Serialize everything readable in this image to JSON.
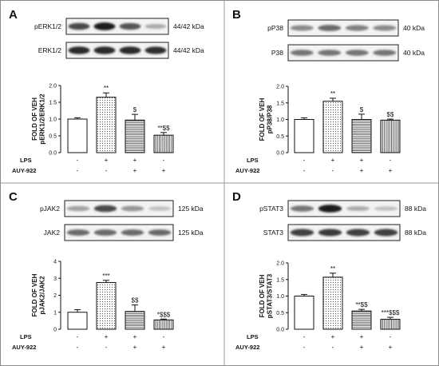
{
  "panels": [
    {
      "letter": "A",
      "blots": [
        {
          "label": "pERK1/2",
          "size": "44/42 kDa",
          "intensity": [
            0.75,
            0.95,
            0.7,
            0.3
          ]
        },
        {
          "label": "ERK1/2",
          "size": "44/42 kDa",
          "intensity": [
            0.9,
            0.9,
            0.9,
            0.88
          ]
        }
      ],
      "chart_data": {
        "type": "bar",
        "ylabel_lines": [
          "FOLD OF VEH",
          "pERK1/2/ERK1/2"
        ],
        "ylim": [
          0,
          2.0
        ],
        "yticks": [
          "0.0",
          "0.5",
          "1.0",
          "1.5",
          "2.0"
        ],
        "yticks_values": [
          0,
          0.5,
          1.0,
          1.5,
          2.0
        ],
        "values": [
          1.0,
          1.65,
          0.97,
          0.52
        ],
        "errors": [
          0.04,
          0.13,
          0.17,
          0.08
        ],
        "sig": [
          "",
          "**",
          "$",
          "**$$"
        ]
      },
      "rows": [
        {
          "label": "LPS",
          "signs": [
            "-",
            "+",
            "+",
            "-"
          ]
        },
        {
          "label": "AUY-922",
          "signs": [
            "-",
            "-",
            "+",
            "+"
          ]
        }
      ]
    },
    {
      "letter": "B",
      "blots": [
        {
          "label": "pP38",
          "size": "40 kDa",
          "intensity": [
            0.45,
            0.6,
            0.5,
            0.45
          ]
        },
        {
          "label": "P38",
          "size": "40 kDa",
          "intensity": [
            0.55,
            0.55,
            0.55,
            0.55
          ]
        }
      ],
      "chart_data": {
        "type": "bar",
        "ylabel_lines": [
          "FOLD OF VEH",
          "pP38/P38"
        ],
        "ylim": [
          0,
          2.0
        ],
        "yticks": [
          "0.0",
          "0.5",
          "1.0",
          "1.5",
          "2.0"
        ],
        "yticks_values": [
          0,
          0.5,
          1.0,
          1.5,
          2.0
        ],
        "values": [
          1.0,
          1.55,
          1.0,
          0.98
        ],
        "errors": [
          0.05,
          0.09,
          0.16,
          0.03
        ],
        "sig": [
          "",
          "**",
          "$",
          "$$"
        ]
      },
      "rows": [
        {
          "label": "LPS",
          "signs": [
            "-",
            "+",
            "+",
            "-"
          ]
        },
        {
          "label": "AUY-922",
          "signs": [
            "-",
            "-",
            "+",
            "+"
          ]
        }
      ]
    },
    {
      "letter": "C",
      "blots": [
        {
          "label": "pJAK2",
          "size": "125 kDa",
          "intensity": [
            0.35,
            0.75,
            0.4,
            0.2
          ]
        },
        {
          "label": "JAK2",
          "size": "125 kDa",
          "intensity": [
            0.6,
            0.6,
            0.6,
            0.6
          ]
        }
      ],
      "chart_data": {
        "type": "bar",
        "ylabel_lines": [
          "FOLD OF VEH",
          "pJAK2/JAK2"
        ],
        "ylim": [
          0,
          4
        ],
        "yticks": [
          "0",
          "1",
          "2",
          "3",
          "4"
        ],
        "yticks_values": [
          0,
          1,
          2,
          3,
          4
        ],
        "values": [
          1.0,
          2.75,
          1.05,
          0.55
        ],
        "errors": [
          0.15,
          0.13,
          0.38,
          0.05
        ],
        "sig": [
          "",
          "***",
          "$$",
          "*$$$"
        ]
      },
      "rows": [
        {
          "label": "LPS",
          "signs": [
            "-",
            "+",
            "+",
            "-"
          ]
        },
        {
          "label": "AUY-922",
          "signs": [
            "-",
            "-",
            "+",
            "+"
          ]
        }
      ]
    },
    {
      "letter": "D",
      "blots": [
        {
          "label": "pSTAT3",
          "size": "88 kDa",
          "intensity": [
            0.55,
            0.95,
            0.3,
            0.2
          ]
        },
        {
          "label": "STAT3",
          "size": "88 kDa",
          "intensity": [
            0.8,
            0.82,
            0.8,
            0.8
          ]
        }
      ],
      "chart_data": {
        "type": "bar",
        "ylabel_lines": [
          "FOLD OF VEH",
          "pSTAT3/STAT3"
        ],
        "ylim": [
          0,
          2.0
        ],
        "yticks": [
          "0.0",
          "0.5",
          "1.0",
          "1.5",
          "2.0"
        ],
        "yticks_values": [
          0,
          0.5,
          1.0,
          1.5,
          2.0
        ],
        "values": [
          1.0,
          1.57,
          0.55,
          0.3
        ],
        "errors": [
          0.05,
          0.12,
          0.05,
          0.06
        ],
        "sig": [
          "",
          "**",
          "**$$",
          "***$$$"
        ]
      },
      "rows": [
        {
          "label": "LPS",
          "signs": [
            "-",
            "+",
            "+",
            "-"
          ]
        },
        {
          "label": "AUY-922",
          "signs": [
            "-",
            "-",
            "+",
            "+"
          ]
        }
      ]
    }
  ],
  "bar_fills": [
    "white-fill",
    "dotted-fill",
    "horizontal-lines-fill",
    "vertical-lines-fill"
  ]
}
